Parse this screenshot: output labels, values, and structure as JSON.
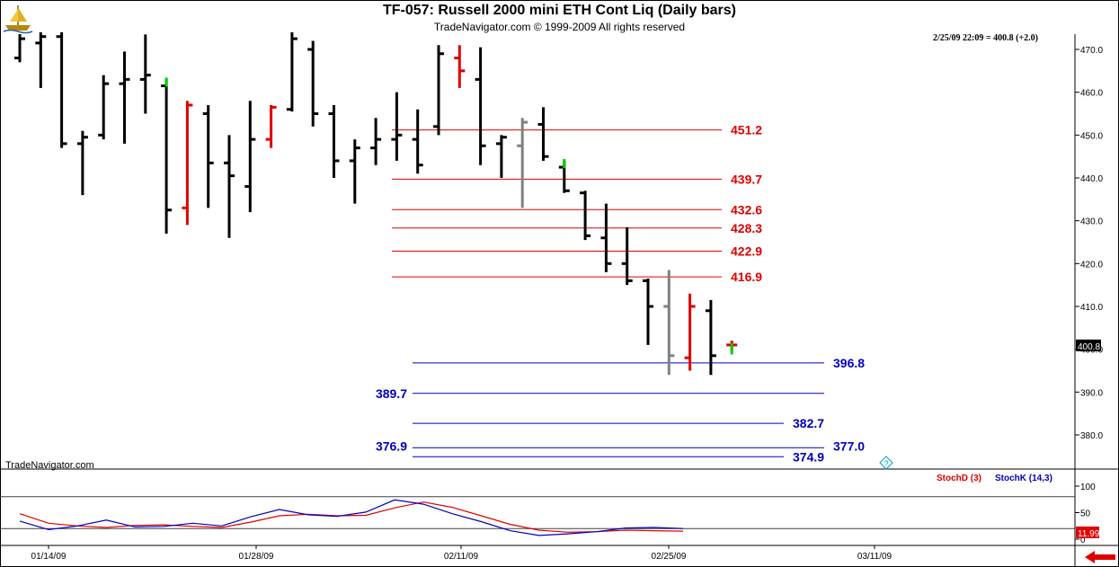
{
  "header": {
    "title": "TF-057:  Russell 2000 mini ETH Cont Liq  (Daily bars)",
    "copyright": "TradeNavigator.com © 1999-2009 All rights reserved",
    "last_quote": "2/25/09 22:09 = 400.8 (+2.0)",
    "watermark": "TradeNavigator.com",
    "logo_icon": "sailing-ship-icon"
  },
  "price_axis": {
    "ticks": [
      "470.0",
      "460.0",
      "450.0",
      "440.0",
      "430.0",
      "420.0",
      "410.0",
      "400.0",
      "390.0",
      "380.0"
    ],
    "last_price_label": "400.8",
    "ylim": [
      372,
      474
    ]
  },
  "levels": [
    {
      "label": "451.2",
      "value": 451.2,
      "color": "#e00000",
      "x_start": "02/04/09",
      "x_end": "02/28/09"
    },
    {
      "label": "439.7",
      "value": 439.7,
      "color": "#e00000",
      "x_start": "02/04/09",
      "x_end": "02/28/09"
    },
    {
      "label": "432.6",
      "value": 432.6,
      "color": "#e00000",
      "x_start": "02/04/09",
      "x_end": "02/28/09"
    },
    {
      "label": "428.3",
      "value": 428.3,
      "color": "#e00000",
      "x_start": "02/04/09",
      "x_end": "02/28/09"
    },
    {
      "label": "422.9",
      "value": 422.9,
      "color": "#e00000",
      "x_start": "02/04/09",
      "x_end": "02/28/09"
    },
    {
      "label": "416.9",
      "value": 416.9,
      "color": "#e00000",
      "x_start": "02/04/09",
      "x_end": "02/28/09"
    },
    {
      "label": "396.8",
      "value": 396.8,
      "color": "#0000c0",
      "x_start": "02/04/09",
      "x_end": "03/06/09"
    },
    {
      "label": "389.7",
      "value": 389.7,
      "color": "#0000c0",
      "x_start": "02/04/09",
      "x_end": "03/06/09"
    },
    {
      "label": "382.7",
      "value": 382.7,
      "color": "#0000c0",
      "x_start": "02/04/09",
      "x_end": "03/02/09"
    },
    {
      "label": "377.0",
      "value": 377.0,
      "color": "#0000c0",
      "x_start": "02/04/09",
      "x_end": "03/06/09"
    },
    {
      "label": "376.9",
      "value": 376.9,
      "color": "#0000c0",
      "x_start": "02/04/09",
      "x_end": "03/06/09"
    },
    {
      "label": "374.9",
      "value": 374.9,
      "color": "#0000c0",
      "x_start": "02/04/09",
      "x_end": "03/02/09"
    }
  ],
  "chart_data": {
    "type": "bar",
    "title": "TF-057:  Russell 2000 mini ETH Cont Liq  (Daily bars)",
    "x_ticks": [
      "01/14/09",
      "01/28/09",
      "02/11/09",
      "02/25/09",
      "03/11/09"
    ],
    "bars": [
      {
        "date": "01/05/09",
        "open": 468.0,
        "high": 475.0,
        "low": 467.0,
        "close": 472.5,
        "color": "#000000"
      },
      {
        "date": "01/06/09",
        "open": 471.5,
        "high": 474.0,
        "low": 461.0,
        "close": 473.0,
        "color": "#000000"
      },
      {
        "date": "01/07/09",
        "open": 473.0,
        "high": 474.0,
        "low": 447.0,
        "close": 448.0,
        "color": "#000000"
      },
      {
        "date": "01/08/09",
        "open": 448.0,
        "high": 451.0,
        "low": 436.0,
        "close": 449.5,
        "color": "#000000"
      },
      {
        "date": "01/09/09",
        "open": 450.0,
        "high": 464.0,
        "low": 449.0,
        "close": 462.0,
        "color": "#000000"
      },
      {
        "date": "01/12/09",
        "open": 462.0,
        "high": 469.5,
        "low": 448.0,
        "close": 463.0,
        "color": "#000000"
      },
      {
        "date": "01/13/09",
        "open": 463.0,
        "high": 473.5,
        "low": 455.0,
        "close": 464.0,
        "color": "#000000"
      },
      {
        "date": "01/14/09",
        "open": 461.5,
        "high": 463.0,
        "low": 427.0,
        "close": 432.5,
        "color": "#000000"
      },
      {
        "date": "01/15/09",
        "open": 433.0,
        "high": 458.0,
        "low": 429.0,
        "close": 457.0,
        "color": "#e00000"
      },
      {
        "date": "01/16/09",
        "open": 455.0,
        "high": 457.0,
        "low": 433.0,
        "close": 443.5,
        "color": "#000000"
      },
      {
        "date": "01/20/09",
        "open": 443.5,
        "high": 450.0,
        "low": 426.0,
        "close": 440.5,
        "color": "#000000"
      },
      {
        "date": "01/21/09",
        "open": 438.0,
        "high": 458.0,
        "low": 432.0,
        "close": 449.0,
        "color": "#000000"
      },
      {
        "date": "01/22/09",
        "open": 449.0,
        "high": 457.0,
        "low": 447.0,
        "close": 456.5,
        "color": "#e00000"
      },
      {
        "date": "01/23/09",
        "open": 456.0,
        "high": 474.0,
        "low": 455.5,
        "close": 472.5,
        "color": "#000000"
      },
      {
        "date": "01/26/09",
        "open": 470.0,
        "high": 472.0,
        "low": 452.0,
        "close": 455.0,
        "color": "#000000"
      },
      {
        "date": "01/27/09",
        "open": 455.0,
        "high": 457.0,
        "low": 440.0,
        "close": 444.0,
        "color": "#000000"
      },
      {
        "date": "01/28/09",
        "open": 444.0,
        "high": 449.0,
        "low": 434.0,
        "close": 447.0,
        "color": "#000000"
      },
      {
        "date": "01/29/09",
        "open": 447.0,
        "high": 454.0,
        "low": 443.0,
        "close": 449.0,
        "color": "#000000"
      },
      {
        "date": "01/30/09",
        "open": 449.0,
        "high": 460.0,
        "low": 444.0,
        "close": 450.0,
        "color": "#000000"
      },
      {
        "date": "02/02/09",
        "open": 449.0,
        "high": 456.0,
        "low": 441.0,
        "close": 443.0,
        "color": "#000000"
      },
      {
        "date": "02/03/09",
        "open": 452.0,
        "high": 471.0,
        "low": 450.0,
        "close": 469.0,
        "color": "#000000"
      },
      {
        "date": "02/04/09",
        "open": 468.0,
        "high": 471.0,
        "low": 461.0,
        "close": 465.0,
        "color": "#e00000"
      },
      {
        "date": "02/05/09",
        "open": 463.0,
        "high": 470.5,
        "low": 443.0,
        "close": 447.5,
        "color": "#000000"
      },
      {
        "date": "02/06/09",
        "open": 448.0,
        "high": 450.0,
        "low": 440.0,
        "close": 449.5,
        "color": "#000000"
      },
      {
        "date": "02/09/09",
        "open": 447.5,
        "high": 454.0,
        "low": 433.0,
        "close": 453.0,
        "color": "#808080"
      },
      {
        "date": "02/10/09",
        "open": 452.5,
        "high": 456.5,
        "low": 444.0,
        "close": 445.0,
        "color": "#000000"
      },
      {
        "date": "02/11/09",
        "open": 442.5,
        "high": 444.0,
        "low": 436.5,
        "close": 437.0,
        "color": "#000000"
      },
      {
        "date": "02/12/09",
        "open": 436.5,
        "high": 437.0,
        "low": 425.5,
        "close": 426.5,
        "color": "#000000"
      },
      {
        "date": "02/13/09",
        "open": 426.0,
        "high": 434.0,
        "low": 418.0,
        "close": 420.0,
        "color": "#000000"
      },
      {
        "date": "02/17/09",
        "open": 420.0,
        "high": 428.5,
        "low": 415.0,
        "close": 416.0,
        "color": "#000000"
      },
      {
        "date": "02/18/09",
        "open": 416.0,
        "high": 416.5,
        "low": 401.0,
        "close": 410.0,
        "color": "#000000"
      },
      {
        "date": "02/19/09",
        "open": 410.0,
        "high": 418.5,
        "low": 394.0,
        "close": 398.5,
        "color": "#808080"
      },
      {
        "date": "02/20/09",
        "open": 398.0,
        "high": 413.0,
        "low": 395.0,
        "close": 410.0,
        "color": "#e00000"
      },
      {
        "date": "02/23/09",
        "open": 409.0,
        "high": 411.5,
        "low": 394.0,
        "close": 398.5,
        "color": "#000000"
      },
      {
        "date": "02/24/09",
        "open": 401.0,
        "high": 402.0,
        "low": 399.5,
        "close": 401.0,
        "color": "#e00000"
      }
    ],
    "green_highs": [
      {
        "date": "01/14/09",
        "from": 463.0,
        "to": 461.5
      },
      {
        "date": "02/11/09",
        "from": 444.0,
        "to": 442.5
      },
      {
        "date": "02/24/09",
        "from": 401.0,
        "to": 399.0
      }
    ],
    "stochastic": {
      "legend": [
        {
          "name": "StochD (3)",
          "color": "#e00000"
        },
        {
          "name": "StochK (14,3)",
          "color": "#0000c0"
        }
      ],
      "ticks": [
        "100",
        "50",
        "0"
      ],
      "levels": [
        80,
        20
      ],
      "last_label": "11.99",
      "ylim": [
        0,
        100
      ],
      "series": [
        {
          "name": "StochD (3)",
          "color": "#e00000",
          "values": [
            48,
            30,
            25,
            22,
            26,
            27,
            24,
            22,
            32,
            44,
            47,
            44,
            45,
            59,
            70,
            60,
            44,
            28,
            17,
            13,
            14,
            17,
            16,
            15
          ]
        },
        {
          "name": "StochK (14,3)",
          "color": "#0000c0",
          "values": [
            34,
            18,
            25,
            36,
            23,
            24,
            30,
            25,
            42,
            56,
            46,
            43,
            51,
            74,
            66,
            48,
            33,
            16,
            7,
            10,
            14,
            21,
            22,
            20
          ]
        }
      ]
    }
  },
  "footer": {
    "help_icon": "question-diamond-icon",
    "scroll_left_icon": "red-left-arrow-icon"
  }
}
